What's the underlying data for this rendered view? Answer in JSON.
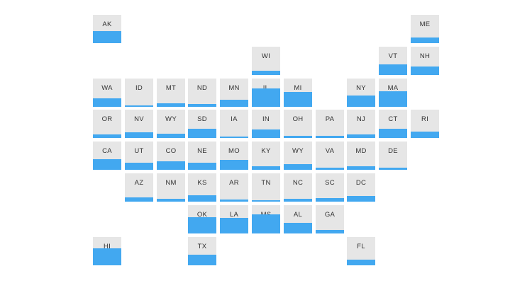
{
  "chart_data": {
    "type": "tile-map",
    "title": "",
    "colors": {
      "tile_background": "#e6e6e6",
      "bar_fill": "#42a8f0",
      "label": "#333333"
    },
    "value_range": [
      0,
      1
    ],
    "states": [
      {
        "label": "AK",
        "row": 0,
        "col": 0,
        "value": 0.43
      },
      {
        "label": "ME",
        "row": 0,
        "col": 10,
        "value": 0.2
      },
      {
        "label": "WI",
        "row": 1,
        "col": 5,
        "value": 0.15
      },
      {
        "label": "VT",
        "row": 1,
        "col": 9,
        "value": 0.38
      },
      {
        "label": "NH",
        "row": 1,
        "col": 10,
        "value": 0.3
      },
      {
        "label": "WA",
        "row": 2,
        "col": 0,
        "value": 0.3
      },
      {
        "label": "ID",
        "row": 2,
        "col": 1,
        "value": 0.05
      },
      {
        "label": "MT",
        "row": 2,
        "col": 2,
        "value": 0.12
      },
      {
        "label": "ND",
        "row": 2,
        "col": 3,
        "value": 0.1
      },
      {
        "label": "MN",
        "row": 2,
        "col": 4,
        "value": 0.25
      },
      {
        "label": "IL",
        "row": 2,
        "col": 5,
        "value": 0.65
      },
      {
        "label": "MI",
        "row": 2,
        "col": 6,
        "value": 0.53
      },
      {
        "label": "NY",
        "row": 2,
        "col": 8,
        "value": 0.4
      },
      {
        "label": "MA",
        "row": 2,
        "col": 9,
        "value": 0.55
      },
      {
        "label": "OR",
        "row": 3,
        "col": 0,
        "value": 0.13
      },
      {
        "label": "NV",
        "row": 3,
        "col": 1,
        "value": 0.2
      },
      {
        "label": "WY",
        "row": 3,
        "col": 2,
        "value": 0.15
      },
      {
        "label": "SD",
        "row": 3,
        "col": 3,
        "value": 0.33
      },
      {
        "label": "IA",
        "row": 3,
        "col": 4,
        "value": 0.05
      },
      {
        "label": "IN",
        "row": 3,
        "col": 5,
        "value": 0.3
      },
      {
        "label": "OH",
        "row": 3,
        "col": 6,
        "value": 0.08
      },
      {
        "label": "PA",
        "row": 3,
        "col": 7,
        "value": 0.08
      },
      {
        "label": "NJ",
        "row": 3,
        "col": 8,
        "value": 0.13
      },
      {
        "label": "CT",
        "row": 3,
        "col": 9,
        "value": 0.33
      },
      {
        "label": "RI",
        "row": 3,
        "col": 10,
        "value": 0.23
      },
      {
        "label": "CA",
        "row": 4,
        "col": 0,
        "value": 0.38
      },
      {
        "label": "UT",
        "row": 4,
        "col": 1,
        "value": 0.25
      },
      {
        "label": "CO",
        "row": 4,
        "col": 2,
        "value": 0.3
      },
      {
        "label": "NE",
        "row": 4,
        "col": 3,
        "value": 0.25
      },
      {
        "label": "MO",
        "row": 4,
        "col": 4,
        "value": 0.35
      },
      {
        "label": "KY",
        "row": 4,
        "col": 5,
        "value": 0.13
      },
      {
        "label": "WY",
        "row": 4,
        "col": 6,
        "value": 0.2
      },
      {
        "label": "VA",
        "row": 4,
        "col": 7,
        "value": 0.08
      },
      {
        "label": "MD",
        "row": 4,
        "col": 8,
        "value": 0.13
      },
      {
        "label": "DE",
        "row": 4,
        "col": 9,
        "value": 0.08
      },
      {
        "label": "AZ",
        "row": 5,
        "col": 1,
        "value": 0.15
      },
      {
        "label": "NM",
        "row": 5,
        "col": 2,
        "value": 0.1
      },
      {
        "label": "KS",
        "row": 5,
        "col": 3,
        "value": 0.23
      },
      {
        "label": "AR",
        "row": 5,
        "col": 4,
        "value": 0.08
      },
      {
        "label": "TN",
        "row": 5,
        "col": 5,
        "value": 0.05
      },
      {
        "label": "NC",
        "row": 5,
        "col": 6,
        "value": 0.1
      },
      {
        "label": "SC",
        "row": 5,
        "col": 7,
        "value": 0.13
      },
      {
        "label": "DC",
        "row": 5,
        "col": 8,
        "value": 0.2
      },
      {
        "label": "OK",
        "row": 6,
        "col": 3,
        "value": 0.58
      },
      {
        "label": "LA",
        "row": 6,
        "col": 4,
        "value": 0.55
      },
      {
        "label": "MS",
        "row": 6,
        "col": 5,
        "value": 0.68
      },
      {
        "label": "AL",
        "row": 6,
        "col": 6,
        "value": 0.38
      },
      {
        "label": "GA",
        "row": 6,
        "col": 7,
        "value": 0.13
      },
      {
        "label": "HI",
        "row": 7,
        "col": 0,
        "value": 0.6
      },
      {
        "label": "TX",
        "row": 7,
        "col": 3,
        "value": 0.38
      },
      {
        "label": "FL",
        "row": 7,
        "col": 8,
        "value": 0.2
      }
    ]
  }
}
